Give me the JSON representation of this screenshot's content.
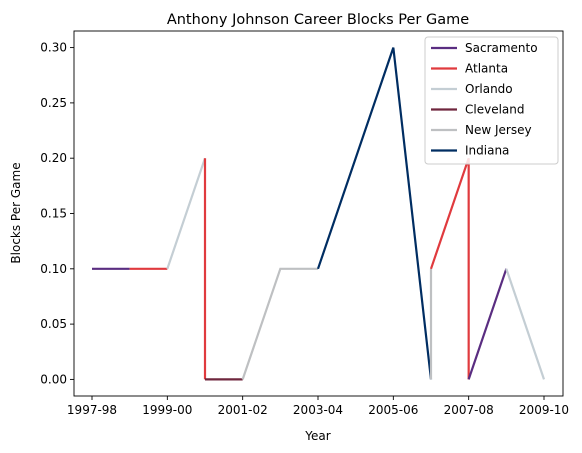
{
  "chart_data": {
    "type": "line",
    "title": "Anthony Johnson  Career Blocks Per Game",
    "xlabel": "Year",
    "ylabel": "Blocks Per Game",
    "x_ticks": [
      "1997-98",
      "1999-00",
      "2001-02",
      "2003-04",
      "2005-06",
      "2007-08",
      "2009-10"
    ],
    "y_ticks": [
      "0.00",
      "0.05",
      "0.10",
      "0.15",
      "0.20",
      "0.25",
      "0.30"
    ],
    "ylim": [
      -0.015,
      0.315
    ],
    "legend_position": "upper right",
    "series": [
      {
        "name": "Sacramento",
        "color": "#5a2d81",
        "x": [
          1997,
          1998
        ],
        "y": [
          0.1,
          0.1
        ]
      },
      {
        "name": "Atlanta",
        "color": "#e03a3e",
        "x": [
          1998,
          1999
        ],
        "y": [
          0.1,
          0.1
        ]
      },
      {
        "name": "Orlando",
        "color": "#c4ced4",
        "x": [
          1999,
          2000
        ],
        "y": [
          0.1,
          0.2
        ]
      },
      {
        "name": "Atlanta",
        "color": "#e03a3e",
        "x": [
          2000,
          2000
        ],
        "y": [
          0.2,
          0.0
        ]
      },
      {
        "name": "Cleveland",
        "color": "#6f263d",
        "x": [
          2000,
          2001
        ],
        "y": [
          0.0,
          0.0
        ]
      },
      {
        "name": "New Jersey",
        "color": "#bec0c2",
        "x": [
          2001,
          2002,
          2003
        ],
        "y": [
          0.0,
          0.1,
          0.1
        ]
      },
      {
        "name": "Indiana",
        "color": "#002d62",
        "x": [
          2003,
          2005,
          2006
        ],
        "y": [
          0.1,
          0.3,
          0.0
        ]
      },
      {
        "name": "New Jersey",
        "color": "#bec0c2",
        "x": [
          2006,
          2006
        ],
        "y": [
          0.0,
          0.1
        ]
      },
      {
        "name": "Atlanta",
        "color": "#e03a3e",
        "x": [
          2006,
          2007,
          2007
        ],
        "y": [
          0.1,
          0.2,
          0.0
        ]
      },
      {
        "name": "Sacramento",
        "color": "#5a2d81",
        "x": [
          2007,
          2008
        ],
        "y": [
          0.0,
          0.1
        ]
      },
      {
        "name": "Orlando",
        "color": "#c4ced4",
        "x": [
          2008,
          2009
        ],
        "y": [
          0.1,
          0.0
        ]
      }
    ],
    "legend": [
      {
        "label": "Sacramento",
        "color": "#5a2d81"
      },
      {
        "label": "Atlanta",
        "color": "#e03a3e"
      },
      {
        "label": "Orlando",
        "color": "#c4ced4"
      },
      {
        "label": "Cleveland",
        "color": "#6f263d"
      },
      {
        "label": "New Jersey",
        "color": "#bec0c2"
      },
      {
        "label": "Indiana",
        "color": "#002d62"
      }
    ]
  }
}
